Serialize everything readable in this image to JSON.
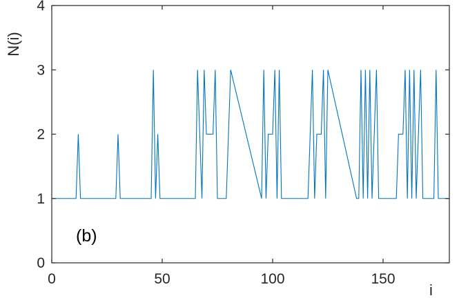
{
  "chart_data": {
    "type": "line",
    "title": "",
    "xlabel": "i",
    "ylabel": "N(i)",
    "panel_label": "(b)",
    "xlim": [
      0,
      180
    ],
    "ylim": [
      0,
      4
    ],
    "xticks": [
      0,
      50,
      100,
      150
    ],
    "yticks": [
      0,
      1,
      2,
      3,
      4
    ],
    "xtick_labels": [
      "0",
      "50",
      "100",
      "150"
    ],
    "ytick_labels": [
      "0",
      "1",
      "2",
      "3",
      "4"
    ],
    "grid": false,
    "line_color": "#0072BD",
    "axis_color": "#262626",
    "series": [
      {
        "x": [
          0,
          11,
          12,
          13,
          29,
          30,
          31,
          45,
          46,
          47,
          48,
          49,
          65,
          66,
          67,
          68,
          69,
          70,
          71,
          72,
          73,
          74,
          75,
          79,
          80,
          81,
          95,
          96,
          97,
          98,
          99,
          100,
          101,
          102,
          103,
          104,
          116,
          117,
          118,
          119,
          120,
          121,
          122,
          123,
          124,
          125,
          138,
          139,
          140,
          141,
          142,
          143,
          144,
          145,
          146,
          147,
          148,
          156,
          157,
          158,
          159,
          160,
          161,
          162,
          163,
          164,
          165,
          166,
          167,
          168,
          173,
          174,
          175,
          178,
          179,
          180
        ],
        "y": [
          1,
          1,
          2,
          1,
          1,
          2,
          1,
          1,
          3,
          1,
          2,
          1,
          1,
          3,
          2,
          1,
          3,
          2,
          2,
          2,
          2,
          3,
          1,
          1,
          2,
          3,
          1,
          3,
          1,
          2,
          2,
          2,
          3,
          1,
          3,
          1,
          1,
          2,
          3,
          1,
          2,
          2,
          2,
          3,
          1,
          3,
          1,
          1,
          3,
          1,
          3,
          1,
          3,
          1,
          2,
          3,
          1,
          1,
          2,
          2,
          2,
          3,
          1,
          3,
          1,
          3,
          1,
          2,
          3,
          1,
          1,
          3,
          1,
          1,
          1,
          1
        ]
      }
    ]
  }
}
